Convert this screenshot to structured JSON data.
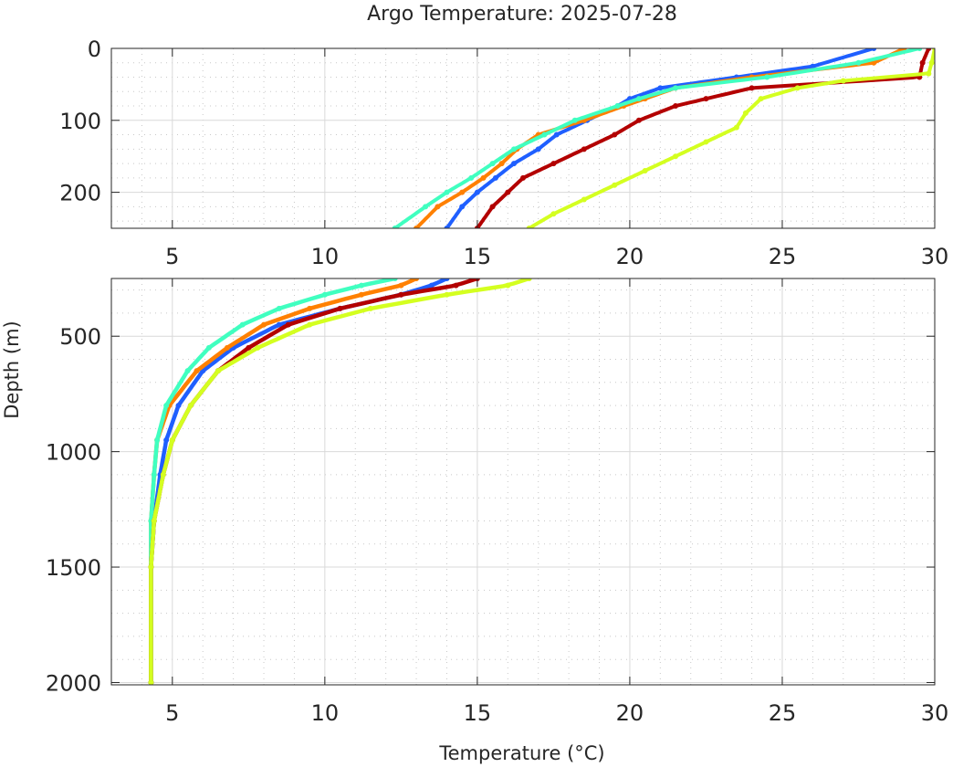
{
  "chart_data": {
    "type": "scatter",
    "title": "Argo Temperature: 2025-07-28",
    "xlabel": "Temperature (°C)",
    "ylabel": "Depth (m)",
    "panels": [
      {
        "name": "upper",
        "xlim": [
          3,
          30
        ],
        "ylim": [
          0,
          250
        ],
        "x_ticks": [
          5,
          10,
          15,
          20,
          25,
          30
        ],
        "y_ticks": [
          0,
          100,
          200
        ],
        "grid": true
      },
      {
        "name": "lower",
        "xlim": [
          3,
          30
        ],
        "ylim": [
          250,
          2010
        ],
        "x_ticks": [
          5,
          10,
          15,
          20,
          25,
          30
        ],
        "y_ticks": [
          500,
          1000,
          1500,
          2000
        ],
        "grid": true
      }
    ],
    "series": [
      {
        "name": "profile-blue",
        "color": "#1f5fff",
        "depth": [
          0,
          25,
          40,
          55,
          70,
          80,
          100,
          120,
          140,
          160,
          180,
          200,
          220,
          250,
          280,
          320,
          380,
          450,
          550,
          650,
          800,
          950,
          1100,
          1300,
          1500,
          2000
        ],
        "temperature": [
          28.0,
          26.0,
          23.5,
          21.0,
          20.0,
          19.6,
          18.6,
          17.6,
          17.0,
          16.2,
          15.6,
          15.0,
          14.5,
          14.0,
          13.5,
          12.5,
          10.5,
          8.5,
          7.0,
          6.0,
          5.2,
          4.8,
          4.6,
          4.4,
          4.3,
          4.3
        ]
      },
      {
        "name": "profile-orange",
        "color": "#ff8000",
        "depth": [
          0,
          20,
          40,
          55,
          70,
          80,
          100,
          120,
          140,
          160,
          180,
          200,
          220,
          250,
          280,
          320,
          380,
          450,
          550,
          650,
          800,
          950,
          1100,
          1300,
          1500,
          2000
        ],
        "temperature": [
          29.0,
          28.0,
          24.0,
          21.5,
          20.5,
          19.8,
          18.5,
          17.0,
          16.3,
          15.8,
          15.2,
          14.5,
          13.7,
          13.0,
          12.5,
          11.2,
          9.5,
          8.0,
          6.8,
          5.8,
          4.9,
          4.5,
          4.4,
          4.3,
          4.3,
          4.3
        ]
      },
      {
        "name": "profile-cyan",
        "color": "#40ffc0",
        "depth": [
          0,
          20,
          40,
          55,
          70,
          80,
          100,
          120,
          140,
          160,
          180,
          200,
          220,
          250,
          280,
          320,
          380,
          450,
          550,
          650,
          800,
          950,
          1100,
          1300,
          1500,
          2000
        ],
        "temperature": [
          29.5,
          27.5,
          24.5,
          21.5,
          20.3,
          19.6,
          18.2,
          17.2,
          16.2,
          15.5,
          14.8,
          14.0,
          13.3,
          12.3,
          11.2,
          10.0,
          8.5,
          7.3,
          6.2,
          5.5,
          4.8,
          4.5,
          4.4,
          4.3,
          4.3,
          4.3
        ]
      },
      {
        "name": "profile-darkred",
        "color": "#b30000",
        "depth": [
          0,
          20,
          40,
          55,
          70,
          80,
          100,
          120,
          140,
          160,
          180,
          200,
          220,
          250,
          280,
          320,
          380,
          450,
          550,
          650,
          800,
          950,
          1100,
          1300,
          1500,
          2000
        ],
        "temperature": [
          29.8,
          29.6,
          29.5,
          24.0,
          22.5,
          21.5,
          20.3,
          19.5,
          18.5,
          17.5,
          16.5,
          16.0,
          15.5,
          15.0,
          14.3,
          12.5,
          10.5,
          8.8,
          7.5,
          6.5,
          5.6,
          5.0,
          4.7,
          4.4,
          4.3,
          4.3
        ]
      },
      {
        "name": "profile-yellowgreen",
        "color": "#d4ff20",
        "depth": [
          0,
          20,
          35,
          45,
          55,
          70,
          90,
          110,
          130,
          150,
          170,
          190,
          210,
          230,
          250,
          280,
          320,
          380,
          450,
          550,
          650,
          800,
          950,
          1100,
          1300,
          1500,
          2000
        ],
        "temperature": [
          30.0,
          29.9,
          29.8,
          27.0,
          25.5,
          24.3,
          23.8,
          23.5,
          22.5,
          21.5,
          20.5,
          19.5,
          18.5,
          17.5,
          16.7,
          16.0,
          14.0,
          11.5,
          9.5,
          7.8,
          6.5,
          5.6,
          5.0,
          4.7,
          4.4,
          4.3,
          4.3
        ]
      }
    ]
  }
}
